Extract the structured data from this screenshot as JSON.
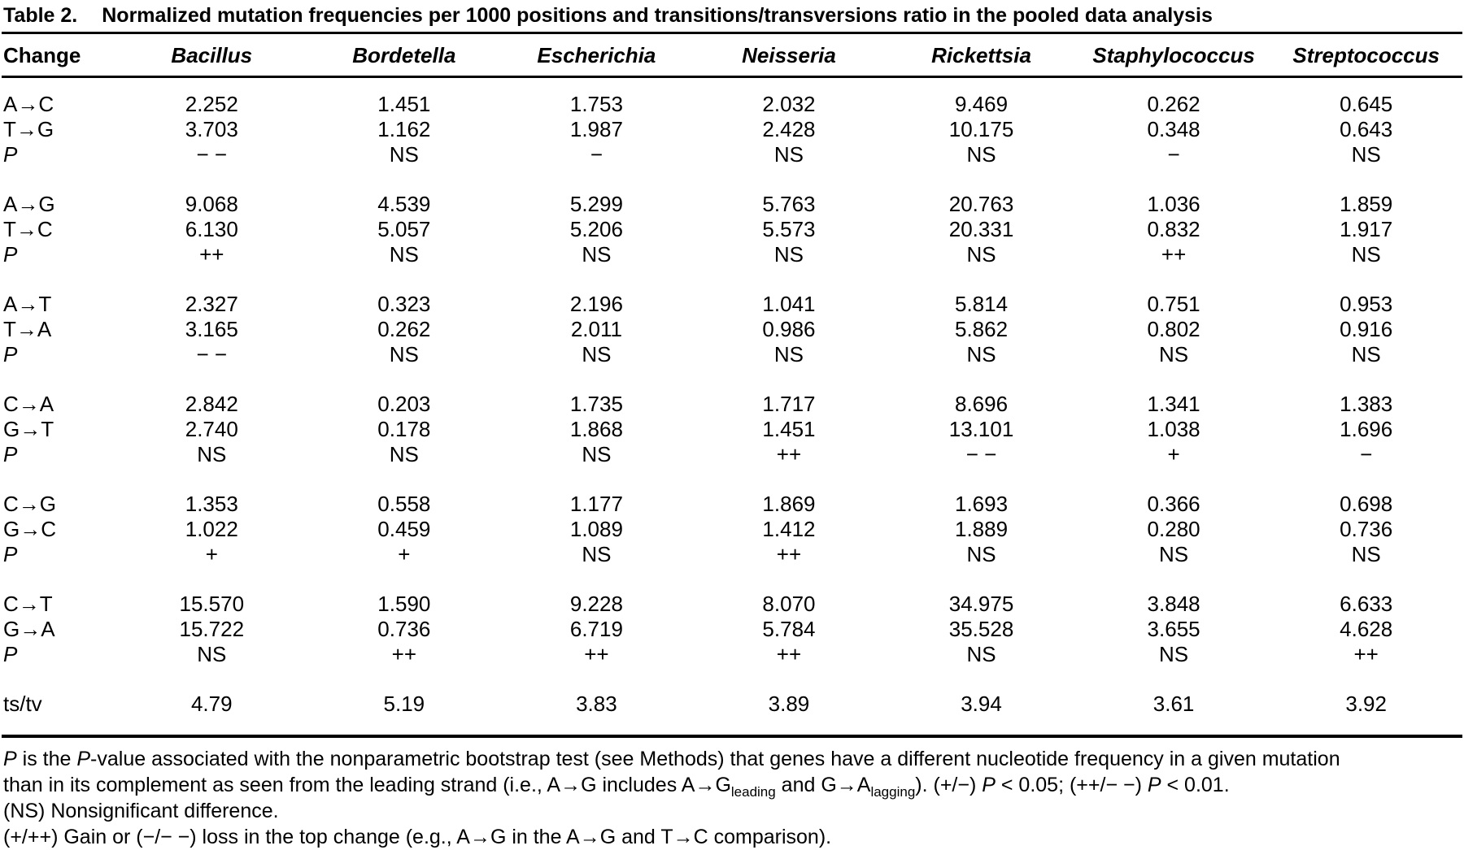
{
  "title": {
    "label": "Table 2.",
    "text": "Normalized mutation frequencies per 1000 positions and transitions/transversions ratio in the pooled data analysis"
  },
  "table": {
    "change_header": "Change",
    "columns": [
      "Bacillus",
      "Bordetella",
      "Escherichia",
      "Neisseria",
      "Rickettsia",
      "Staphylococcus",
      "Streptococcus"
    ],
    "groups": [
      {
        "rows": [
          {
            "change": "A→C",
            "italic": false,
            "values": [
              "2.252",
              "1.451",
              "1.753",
              "2.032",
              "9.469",
              "0.262",
              "0.645"
            ]
          },
          {
            "change": "T→G",
            "italic": false,
            "values": [
              "3.703",
              "1.162",
              "1.987",
              "2.428",
              "10.175",
              "0.348",
              "0.643"
            ]
          },
          {
            "change": "P",
            "italic": true,
            "values": [
              "− −",
              "NS",
              "−",
              "NS",
              "NS",
              "−",
              "NS"
            ]
          }
        ]
      },
      {
        "rows": [
          {
            "change": "A→G",
            "italic": false,
            "values": [
              "9.068",
              "4.539",
              "5.299",
              "5.763",
              "20.763",
              "1.036",
              "1.859"
            ]
          },
          {
            "change": "T→C",
            "italic": false,
            "values": [
              "6.130",
              "5.057",
              "5.206",
              "5.573",
              "20.331",
              "0.832",
              "1.917"
            ]
          },
          {
            "change": "P",
            "italic": true,
            "values": [
              "++",
              "NS",
              "NS",
              "NS",
              "NS",
              "++",
              "NS"
            ]
          }
        ]
      },
      {
        "rows": [
          {
            "change": "A→T",
            "italic": false,
            "values": [
              "2.327",
              "0.323",
              "2.196",
              "1.041",
              "5.814",
              "0.751",
              "0.953"
            ]
          },
          {
            "change": "T→A",
            "italic": false,
            "values": [
              "3.165",
              "0.262",
              "2.011",
              "0.986",
              "5.862",
              "0.802",
              "0.916"
            ]
          },
          {
            "change": "P",
            "italic": true,
            "values": [
              "− −",
              "NS",
              "NS",
              "NS",
              "NS",
              "NS",
              "NS"
            ]
          }
        ]
      },
      {
        "rows": [
          {
            "change": "C→A",
            "italic": false,
            "values": [
              "2.842",
              "0.203",
              "1.735",
              "1.717",
              "8.696",
              "1.341",
              "1.383"
            ]
          },
          {
            "change": "G→T",
            "italic": false,
            "values": [
              "2.740",
              "0.178",
              "1.868",
              "1.451",
              "13.101",
              "1.038",
              "1.696"
            ]
          },
          {
            "change": "P",
            "italic": true,
            "values": [
              "NS",
              "NS",
              "NS",
              "++",
              "− −",
              "+",
              "−"
            ]
          }
        ]
      },
      {
        "rows": [
          {
            "change": "C→G",
            "italic": false,
            "values": [
              "1.353",
              "0.558",
              "1.177",
              "1.869",
              "1.693",
              "0.366",
              "0.698"
            ]
          },
          {
            "change": "G→C",
            "italic": false,
            "values": [
              "1.022",
              "0.459",
              "1.089",
              "1.412",
              "1.889",
              "0.280",
              "0.736"
            ]
          },
          {
            "change": "P",
            "italic": true,
            "values": [
              "+",
              "+",
              "NS",
              "++",
              "NS",
              "NS",
              "NS"
            ]
          }
        ]
      },
      {
        "rows": [
          {
            "change": "C→T",
            "italic": false,
            "values": [
              "15.570",
              "1.590",
              "9.228",
              "8.070",
              "34.975",
              "3.848",
              "6.633"
            ]
          },
          {
            "change": "G→A",
            "italic": false,
            "values": [
              "15.722",
              "0.736",
              "6.719",
              "5.784",
              "35.528",
              "3.655",
              "4.628"
            ]
          },
          {
            "change": "P",
            "italic": true,
            "values": [
              "NS",
              "++",
              "++",
              "++",
              "NS",
              "NS",
              "++"
            ]
          }
        ]
      }
    ],
    "tstv": {
      "label": "ts/tv",
      "values": [
        "4.79",
        "5.19",
        "3.83",
        "3.89",
        "3.94",
        "3.61",
        "3.92"
      ]
    }
  },
  "footnotes": [
    [
      {
        "t": "P",
        "s": "i"
      },
      {
        "t": " is the "
      },
      {
        "t": "P",
        "s": "i"
      },
      {
        "t": "-value associated with the nonparametric bootstrap test (see Methods) that genes have a different nucleotide frequency in a given mutation"
      }
    ],
    [
      {
        "t": "than in its complement as seen from the leading strand (i.e., A→G includes A→G"
      },
      {
        "t": "leading",
        "s": "sub"
      },
      {
        "t": " and G→A"
      },
      {
        "t": "lagging",
        "s": "sub"
      },
      {
        "t": "). (+/−) "
      },
      {
        "t": "P",
        "s": "i"
      },
      {
        "t": " < 0.05; (++/− −) "
      },
      {
        "t": "P",
        "s": "i"
      },
      {
        "t": " < 0.01."
      }
    ],
    [
      {
        "t": "(NS) Nonsignificant difference."
      }
    ],
    [
      {
        "t": "(+/++) Gain or (−/− −) loss in the top change (e.g., A→G in the A→G and T→C comparison)."
      }
    ]
  ]
}
